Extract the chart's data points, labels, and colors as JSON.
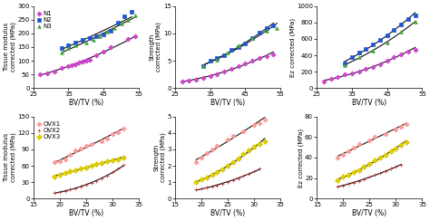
{
  "top_row": {
    "groups": [
      "N1",
      "N2",
      "N3"
    ],
    "colors": [
      "#CC44CC",
      "#2255CC",
      "#44AA33"
    ],
    "markers": [
      "D",
      "s",
      "^"
    ],
    "marker_sizes": [
      7,
      9,
      7
    ],
    "xlim": [
      25,
      55
    ],
    "x_ticks": [
      25,
      35,
      45,
      55
    ],
    "panels": [
      {
        "ylabel": "Tissue modulus\ncorrected (MPa)",
        "ylim": [
          0,
          300
        ],
        "y_ticks": [
          0,
          50,
          100,
          150,
          200,
          250,
          300
        ],
        "data": [
          {
            "x": [
              27,
              29,
              31,
              33,
              35,
              36,
              37,
              38,
              39,
              40,
              41,
              43,
              45,
              47,
              52,
              54
            ],
            "y": [
              50,
              55,
              60,
              75,
              80,
              85,
              88,
              92,
              96,
              100,
              105,
              120,
              135,
              150,
              180,
              190
            ]
          },
          {
            "x": [
              33,
              35,
              37,
              39,
              41,
              43,
              45,
              47,
              49,
              51,
              53
            ],
            "y": [
              148,
              155,
              165,
              175,
              183,
              188,
              195,
              210,
              240,
              262,
              278
            ]
          },
          {
            "x": [
              33,
              35,
              37,
              40,
              42,
              44,
              46,
              48,
              50,
              52,
              54
            ],
            "y": [
              130,
              145,
              155,
              165,
              178,
              190,
              205,
              220,
              235,
              250,
              265
            ]
          }
        ]
      },
      {
        "ylabel": "Strength\ncorrected (MPa)",
        "ylim": [
          0,
          15
        ],
        "y_ticks": [
          0,
          5,
          10,
          15
        ],
        "data": [
          {
            "x": [
              27,
              29,
              31,
              33,
              35,
              37,
              39,
              41,
              43,
              45,
              47,
              49,
              51,
              53
            ],
            "y": [
              1.2,
              1.4,
              1.6,
              1.9,
              2.2,
              2.6,
              3.0,
              3.5,
              4.0,
              4.5,
              5.0,
              5.5,
              5.9,
              6.2
            ]
          },
          {
            "x": [
              33,
              35,
              37,
              39,
              41,
              43,
              45,
              47,
              49,
              51,
              53
            ],
            "y": [
              4.0,
              5.0,
              5.5,
              6.0,
              7.0,
              7.5,
              8.2,
              9.2,
              10.2,
              11.0,
              11.5
            ]
          },
          {
            "x": [
              33,
              37,
              40,
              43,
              47,
              51,
              54
            ],
            "y": [
              4.0,
              5.2,
              6.5,
              7.8,
              9.2,
              10.5,
              11.0
            ]
          }
        ]
      },
      {
        "ylabel": "Ez corrected (MPa)",
        "ylim": [
          0,
          1000
        ],
        "y_ticks": [
          0,
          200,
          400,
          600,
          800,
          1000
        ],
        "data": [
          {
            "x": [
              27,
              29,
              31,
              33,
              35,
              37,
              39,
              41,
              43,
              45,
              47,
              49,
              51,
              53
            ],
            "y": [
              80,
              110,
              140,
              165,
              185,
              205,
              230,
              260,
              295,
              330,
              375,
              410,
              440,
              465
            ]
          },
          {
            "x": [
              33,
              35,
              37,
              39,
              41,
              43,
              45,
              47,
              49,
              51,
              53
            ],
            "y": [
              300,
              380,
              435,
              480,
              535,
              590,
              645,
              705,
              775,
              840,
              890
            ]
          },
          {
            "x": [
              33,
              37,
              41,
              45,
              49,
              53
            ],
            "y": [
              280,
              375,
              460,
              560,
              685,
              805
            ]
          }
        ]
      }
    ]
  },
  "bottom_row": {
    "groups": [
      "OVX1",
      "OVX2",
      "OVX3"
    ],
    "colors": [
      "#FF9999",
      "#CC2222",
      "#DDCC00"
    ],
    "markers": [
      "D",
      "+",
      "D"
    ],
    "marker_sizes": [
      7,
      9,
      9
    ],
    "xlim": [
      15,
      35
    ],
    "x_ticks": [
      15,
      20,
      25,
      30,
      35
    ],
    "panels": [
      {
        "ylabel": "Tissue modulus\ncorrected (MPa)",
        "ylim": [
          0,
          150
        ],
        "y_ticks": [
          0,
          30,
          60,
          90,
          120,
          150
        ],
        "data": [
          {
            "x": [
              19,
              20,
              21,
              22,
              23,
              24,
              25,
              26,
              28,
              29,
              30,
              31,
              32
            ],
            "y": [
              66,
              68,
              72,
              80,
              88,
              92,
              96,
              100,
              105,
              110,
              118,
              122,
              128
            ]
          },
          {
            "x": [
              19,
              20,
              21,
              22,
              23,
              24,
              25,
              26,
              27,
              28,
              29,
              30,
              31,
              32
            ],
            "y": [
              10,
              12,
              14,
              17,
              19,
              22,
              25,
              28,
              32,
              37,
              42,
              48,
              55,
              62
            ]
          },
          {
            "x": [
              19,
              20,
              21,
              22,
              23,
              24,
              25,
              26,
              27,
              28,
              29,
              30,
              31,
              32
            ],
            "y": [
              40,
              44,
              47,
              50,
              52,
              55,
              57,
              60,
              63,
              65,
              68,
              70,
              72,
              75
            ]
          }
        ]
      },
      {
        "ylabel": "Strength\ncorrected (MPa)",
        "ylim": [
          0,
          5
        ],
        "y_ticks": [
          0,
          1,
          2,
          3,
          4,
          5
        ],
        "data": [
          {
            "x": [
              19,
              20,
              21,
              22,
              23,
              25,
              26,
              28,
              30,
              31,
              32
            ],
            "y": [
              2.2,
              2.5,
              2.8,
              3.0,
              3.2,
              3.6,
              3.8,
              4.1,
              4.5,
              4.6,
              4.8
            ]
          },
          {
            "x": [
              19,
              20,
              21,
              22,
              23,
              24,
              25,
              26,
              27,
              28,
              29,
              30,
              31
            ],
            "y": [
              0.55,
              0.6,
              0.65,
              0.72,
              0.8,
              0.9,
              1.0,
              1.12,
              1.25,
              1.38,
              1.52,
              1.68,
              1.85
            ]
          },
          {
            "x": [
              19,
              20,
              21,
              22,
              23,
              24,
              25,
              26,
              27,
              28,
              29,
              30,
              31,
              32
            ],
            "y": [
              1.0,
              1.15,
              1.3,
              1.45,
              1.6,
              1.8,
              2.0,
              2.2,
              2.45,
              2.7,
              2.95,
              3.15,
              3.35,
              3.5
            ]
          }
        ]
      },
      {
        "ylabel": "Ez corrected (MPa)",
        "ylim": [
          0,
          80
        ],
        "y_ticks": [
          0,
          20,
          40,
          60,
          80
        ],
        "data": [
          {
            "x": [
              19,
              20,
              21,
              22,
              23,
              25,
              26,
              28,
              30,
              31,
              32
            ],
            "y": [
              40,
              43,
              46,
              50,
              53,
              57,
              60,
              63,
              67,
              70,
              73
            ]
          },
          {
            "x": [
              19,
              20,
              21,
              22,
              23,
              24,
              25,
              26,
              27,
              28,
              29,
              30,
              31
            ],
            "y": [
              12,
              13,
              14,
              15,
              17,
              19,
              21,
              23,
              25,
              27,
              29,
              31,
              33
            ]
          },
          {
            "x": [
              19,
              20,
              21,
              22,
              23,
              24,
              25,
              26,
              27,
              28,
              29,
              30,
              31,
              32
            ],
            "y": [
              18,
              21,
              23,
              26,
              28,
              31,
              34,
              37,
              40,
              43,
              46,
              49,
              52,
              55
            ]
          }
        ]
      }
    ]
  },
  "xlabel": "BV/TV (%)",
  "fit_color": "#111111",
  "bg_color": "#ffffff",
  "font_size": 5.5,
  "tick_fontsize": 5.0,
  "linewidth": 0.8
}
